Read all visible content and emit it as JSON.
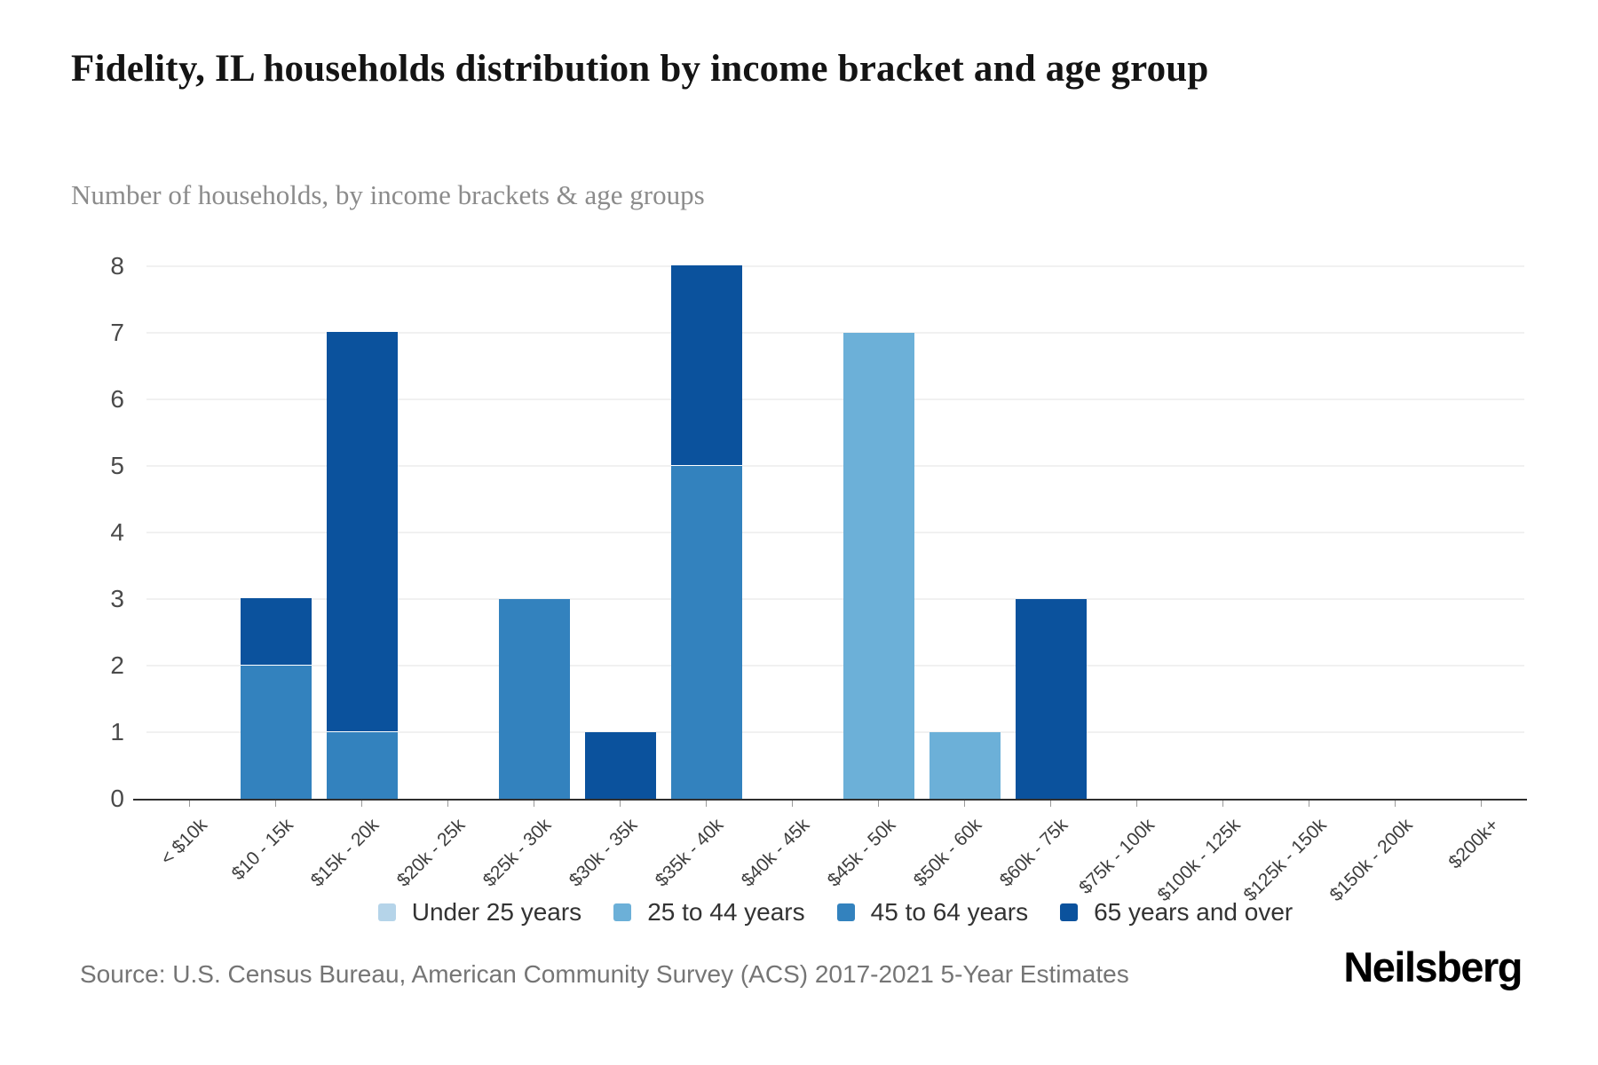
{
  "title": "Fidelity, IL households distribution by income bracket and age group",
  "subtitle": "Number of households, by income brackets & age groups",
  "source": "Source: U.S. Census Bureau, American Community Survey (ACS) 2017-2021 5-Year Estimates",
  "brand": "Neilsberg",
  "chart_data": {
    "type": "bar",
    "stacked": true,
    "title": "Fidelity, IL households distribution by income bracket and age group",
    "subtitle": "Number of households, by income brackets & age groups",
    "xlabel": "",
    "ylabel": "Number of households",
    "ylim": [
      0,
      8
    ],
    "yticks": [
      0,
      1,
      2,
      3,
      4,
      5,
      6,
      7,
      8
    ],
    "grid": true,
    "legend_position": "bottom",
    "categories": [
      "< $10k",
      "$10 - 15k",
      "$15k - 20k",
      "$20k - 25k",
      "$25k - 30k",
      "$30k - 35k",
      "$35k - 40k",
      "$40k - 45k",
      "$45k - 50k",
      "$50k - 60k",
      "$60k - 75k",
      "$75k - 100k",
      "$100k - 125k",
      "$125k - 150k",
      "$150k - 200k",
      "$200k+"
    ],
    "series": [
      {
        "name": "Under 25 years",
        "color": "#b5d4e9",
        "values": [
          0,
          0,
          0,
          0,
          0,
          0,
          0,
          0,
          0,
          0,
          0,
          0,
          0,
          0,
          0,
          0
        ]
      },
      {
        "name": "25 to 44 years",
        "color": "#6cb0d8",
        "values": [
          0,
          0,
          0,
          0,
          0,
          0,
          0,
          0,
          7,
          1,
          0,
          0,
          0,
          0,
          0,
          0
        ]
      },
      {
        "name": "45 to 64 years",
        "color": "#3382be",
        "values": [
          0,
          2,
          1,
          0,
          3,
          0,
          5,
          0,
          0,
          0,
          0,
          0,
          0,
          0,
          0,
          0
        ]
      },
      {
        "name": "65 years and over",
        "color": "#0b529d",
        "values": [
          0,
          1,
          6,
          0,
          0,
          1,
          3,
          0,
          0,
          0,
          3,
          0,
          0,
          0,
          0,
          0
        ]
      }
    ]
  },
  "colors": {
    "axis_line": "#2f2f2f",
    "gridline": "#f1f1f1",
    "tick": "#9a9a9a"
  }
}
